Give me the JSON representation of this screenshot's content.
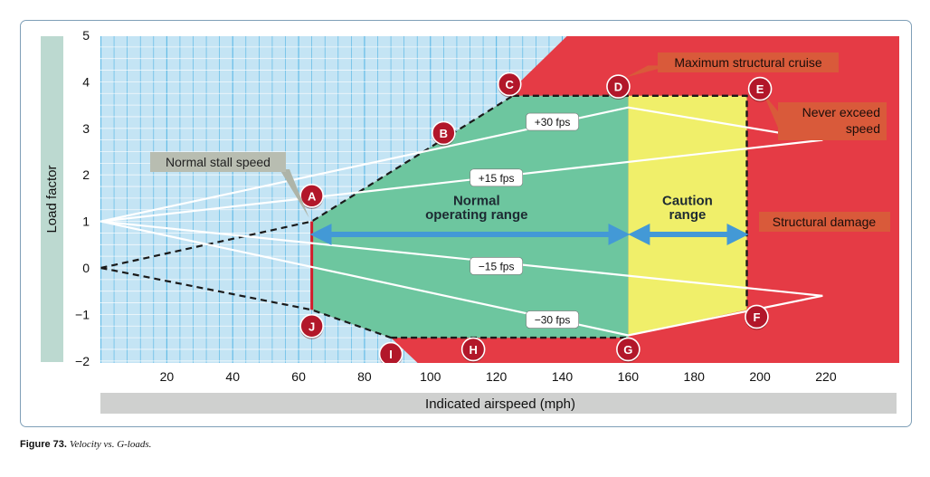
{
  "chart_data": {
    "type": "line",
    "xlabel": "Indicated airspeed (mph)",
    "ylabel": "Load factor",
    "xlim": [
      0,
      240
    ],
    "ylim": [
      -2,
      5
    ],
    "xticks": [
      20,
      40,
      60,
      80,
      100,
      120,
      140,
      160,
      180,
      200,
      220
    ],
    "yticks": [
      5,
      4,
      3,
      2,
      1,
      0,
      -1,
      -2
    ],
    "ytick_labels": [
      "5",
      "4",
      "3",
      "2",
      "1",
      "0",
      "−1",
      "−2"
    ],
    "envelope": [
      [
        64,
        1
      ],
      [
        125,
        3.7
      ],
      [
        196,
        3.7
      ],
      [
        196,
        -0.9
      ],
      [
        160,
        -1.5
      ],
      [
        88,
        -1.5
      ],
      [
        64,
        -0.9
      ]
    ],
    "stall_curve_positive": [
      [
        0,
        0
      ],
      [
        64,
        1
      ],
      [
        125,
        3.7
      ]
    ],
    "stall_curve_negative": [
      [
        0,
        0
      ],
      [
        64,
        -0.9
      ],
      [
        88,
        -1.5
      ]
    ],
    "gust_lines": [
      {
        "label": "+30 fps",
        "points": [
          [
            0,
            1
          ],
          [
            160,
            3.45
          ],
          [
            219,
            2.75
          ]
        ],
        "label_at": [
          137,
          3.15
        ]
      },
      {
        "label": "+15 fps",
        "points": [
          [
            0,
            1
          ],
          [
            219,
            2.75
          ]
        ],
        "label_at": [
          120,
          1.95
        ]
      },
      {
        "label": "−15 fps",
        "points": [
          [
            0,
            1
          ],
          [
            219,
            -0.6
          ]
        ],
        "label_at": [
          120,
          0.05
        ]
      },
      {
        "label": "−30 fps",
        "points": [
          [
            0,
            1
          ],
          [
            160,
            -1.45
          ],
          [
            219,
            -0.6
          ]
        ],
        "label_at": [
          137,
          -1.1
        ]
      }
    ],
    "points": [
      {
        "id": "A",
        "x": 64,
        "y": 1.55
      },
      {
        "id": "B",
        "x": 104,
        "y": 2.9
      },
      {
        "id": "C",
        "x": 124,
        "y": 3.95
      },
      {
        "id": "D",
        "x": 157,
        "y": 3.9
      },
      {
        "id": "E",
        "x": 200,
        "y": 3.85
      },
      {
        "id": "F",
        "x": 199,
        "y": -1.05
      },
      {
        "id": "G",
        "x": 160,
        "y": -1.75
      },
      {
        "id": "H",
        "x": 113,
        "y": -1.75
      },
      {
        "id": "I",
        "x": 88,
        "y": -1.85
      },
      {
        "id": "J",
        "x": 64,
        "y": -1.25
      }
    ],
    "ranges": [
      {
        "label": "Normal operating range",
        "from": 64,
        "to": 160
      },
      {
        "label": "Caution range",
        "from": 160,
        "to": 196
      }
    ],
    "annotations": {
      "normal_stall_speed": "Normal stall speed",
      "maximum_structural_cruise": "Maximum structural cruise",
      "never_exceed_line1": "Never exceed",
      "never_exceed_line2": "speed",
      "structural_damage": "Structural damage",
      "normal_range_line1": "Normal",
      "normal_range_line2": "operating range",
      "caution_range_line1": "Caution",
      "caution_range_line2": "range"
    },
    "colors": {
      "grid_background": "#c4e4f4",
      "grid_lines": "#5db9e6",
      "damage_red": "#e53b45",
      "normal_green": "#6dc69f",
      "caution_yellow": "#f0ef6a",
      "marker_red": "#b2172a",
      "arrow_blue": "#4399d6",
      "callout_brown": "#d95a3a"
    }
  },
  "caption": {
    "figure": "Figure 73.",
    "text": "Velocity vs. G-loads."
  }
}
